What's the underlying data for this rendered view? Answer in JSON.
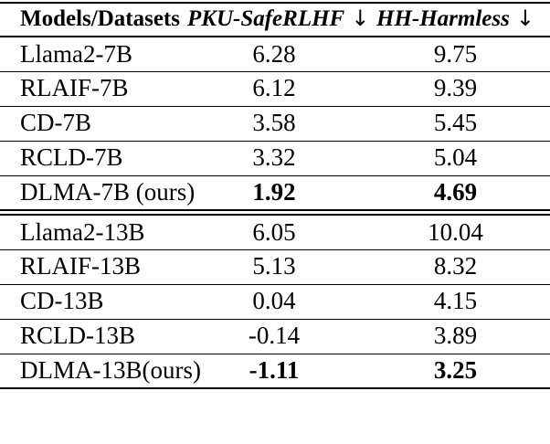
{
  "header": {
    "model": "Models/Datasets",
    "pku": "PKU-SafeRLHF",
    "hh": "HH-Harmless",
    "arrow": "↓"
  },
  "rows": [
    {
      "model": "Llama2-7B",
      "pku": "6.28",
      "hh": "9.75"
    },
    {
      "model": "RLAIF-7B",
      "pku": "6.12",
      "hh": "9.39"
    },
    {
      "model": "CD-7B",
      "pku": "3.58",
      "hh": "5.45"
    },
    {
      "model": "RCLD-7B",
      "pku": "3.32",
      "hh": "5.04"
    },
    {
      "model": "DLMA-7B (ours)",
      "pku": "1.92",
      "hh": "4.69"
    },
    {
      "model": "Llama2-13B",
      "pku": "6.05",
      "hh": "10.04"
    },
    {
      "model": "RLAIF-13B",
      "pku": "5.13",
      "hh": "8.32"
    },
    {
      "model": "CD-13B",
      "pku": "0.04",
      "hh": "4.15"
    },
    {
      "model": "RCLD-13B",
      "pku": "-0.14",
      "hh": "3.89"
    },
    {
      "model": "DLMA-13B(ours)",
      "pku": "-1.11",
      "hh": "3.25"
    }
  ],
  "emphasized_row_indices": [
    4,
    9
  ],
  "colors": {
    "text": "#000000",
    "rules": "#000000",
    "background": "#ffffff"
  }
}
